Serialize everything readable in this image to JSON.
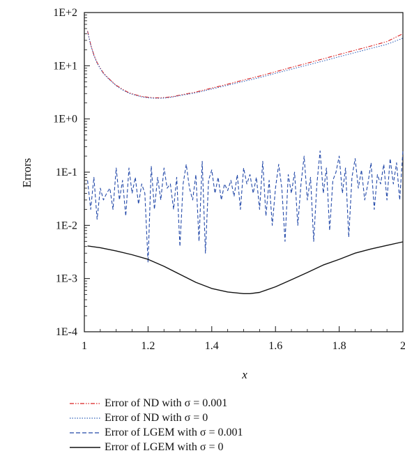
{
  "chart_data": {
    "type": "line",
    "xlabel": "x",
    "ylabel": "Errors",
    "xlim": [
      1,
      2
    ],
    "ylim": [
      0.0001,
      100
    ],
    "yscale": "log",
    "x_ticks": [
      "1",
      "1.2",
      "1.4",
      "1.6",
      "1.8",
      "2"
    ],
    "y_ticks": [
      "1E-4",
      "1E-3",
      "1E-2",
      "1E-1",
      "1E+0",
      "1E+1",
      "1E+2"
    ],
    "grid": false,
    "legend_position": "below plot",
    "series": [
      {
        "name": "Error of ND with σ = 0.001",
        "color": "#d92020",
        "style": "dash-dot-dot",
        "x": [
          1.01,
          1.02,
          1.03,
          1.04,
          1.05,
          1.06,
          1.08,
          1.1,
          1.12,
          1.14,
          1.16,
          1.18,
          1.2,
          1.22,
          1.24,
          1.26,
          1.28,
          1.3,
          1.35,
          1.4,
          1.45,
          1.5,
          1.55,
          1.6,
          1.65,
          1.7,
          1.75,
          1.8,
          1.85,
          1.9,
          1.95,
          2.0
        ],
        "y": [
          45,
          25,
          16,
          11.5,
          9,
          7.3,
          5.5,
          4.3,
          3.6,
          3.1,
          2.85,
          2.65,
          2.55,
          2.5,
          2.5,
          2.55,
          2.65,
          2.8,
          3.2,
          3.8,
          4.5,
          5.4,
          6.4,
          7.7,
          9.3,
          11.2,
          13.5,
          16.3,
          19.6,
          23.5,
          28.5,
          40
        ]
      },
      {
        "name": "Error of ND with σ = 0",
        "color": "#2f5fb8",
        "style": "dotted",
        "x": [
          1.01,
          1.02,
          1.03,
          1.04,
          1.05,
          1.06,
          1.08,
          1.1,
          1.12,
          1.14,
          1.16,
          1.18,
          1.2,
          1.22,
          1.24,
          1.26,
          1.28,
          1.3,
          1.35,
          1.4,
          1.45,
          1.5,
          1.55,
          1.6,
          1.65,
          1.7,
          1.75,
          1.8,
          1.85,
          1.9,
          1.95,
          2.0
        ],
        "y": [
          44,
          24.5,
          15.6,
          11.2,
          8.8,
          7.1,
          5.4,
          4.2,
          3.5,
          3.05,
          2.8,
          2.6,
          2.5,
          2.45,
          2.45,
          2.5,
          2.6,
          2.75,
          3.1,
          3.65,
          4.3,
          5.1,
          6.0,
          7.2,
          8.6,
          10.3,
          12.3,
          14.8,
          17.7,
          21.2,
          25.3,
          33
        ]
      },
      {
        "name": "Error of LGEM with σ = 0.001",
        "color": "#2248a8",
        "style": "dashed",
        "x": [
          1.01,
          1.02,
          1.03,
          1.04,
          1.05,
          1.06,
          1.07,
          1.08,
          1.09,
          1.1,
          1.11,
          1.12,
          1.13,
          1.14,
          1.15,
          1.16,
          1.17,
          1.18,
          1.19,
          1.2,
          1.21,
          1.22,
          1.23,
          1.24,
          1.25,
          1.26,
          1.27,
          1.28,
          1.29,
          1.3,
          1.31,
          1.32,
          1.33,
          1.34,
          1.35,
          1.36,
          1.37,
          1.38,
          1.39,
          1.4,
          1.41,
          1.42,
          1.43,
          1.44,
          1.45,
          1.46,
          1.47,
          1.48,
          1.49,
          1.5,
          1.51,
          1.52,
          1.53,
          1.54,
          1.55,
          1.56,
          1.57,
          1.58,
          1.59,
          1.6,
          1.61,
          1.62,
          1.63,
          1.64,
          1.65,
          1.66,
          1.67,
          1.68,
          1.69,
          1.7,
          1.71,
          1.72,
          1.73,
          1.74,
          1.75,
          1.76,
          1.77,
          1.78,
          1.79,
          1.8,
          1.81,
          1.82,
          1.83,
          1.84,
          1.85,
          1.86,
          1.87,
          1.88,
          1.89,
          1.9,
          1.91,
          1.92,
          1.93,
          1.94,
          1.95,
          1.96,
          1.97,
          1.98,
          1.99,
          2.0
        ],
        "y": [
          0.07,
          0.02,
          0.08,
          0.013,
          0.05,
          0.03,
          0.04,
          0.05,
          0.02,
          0.12,
          0.03,
          0.07,
          0.015,
          0.12,
          0.04,
          0.08,
          0.025,
          0.06,
          0.04,
          0.002,
          0.13,
          0.02,
          0.08,
          0.03,
          0.12,
          0.05,
          0.06,
          0.02,
          0.08,
          0.004,
          0.06,
          0.14,
          0.05,
          0.03,
          0.09,
          0.005,
          0.16,
          0.003,
          0.07,
          0.11,
          0.04,
          0.08,
          0.03,
          0.06,
          0.045,
          0.07,
          0.035,
          0.09,
          0.02,
          0.12,
          0.06,
          0.09,
          0.04,
          0.08,
          0.02,
          0.16,
          0.015,
          0.07,
          0.01,
          0.05,
          0.14,
          0.05,
          0.005,
          0.09,
          0.04,
          0.1,
          0.01,
          0.06,
          0.2,
          0.03,
          0.08,
          0.005,
          0.06,
          0.25,
          0.04,
          0.12,
          0.008,
          0.07,
          0.1,
          0.2,
          0.04,
          0.12,
          0.006,
          0.08,
          0.18,
          0.05,
          0.11,
          0.03,
          0.06,
          0.15,
          0.02,
          0.09,
          0.06,
          0.14,
          0.03,
          0.18,
          0.06,
          0.15,
          0.03,
          0.25
        ]
      },
      {
        "name": "Error of LGEM with σ = 0",
        "color": "#111111",
        "style": "solid",
        "x": [
          1.01,
          1.05,
          1.1,
          1.15,
          1.2,
          1.25,
          1.3,
          1.35,
          1.4,
          1.45,
          1.5,
          1.52,
          1.55,
          1.6,
          1.65,
          1.7,
          1.75,
          1.8,
          1.85,
          1.9,
          1.95,
          2.0
        ],
        "y": [
          0.0041,
          0.0038,
          0.0033,
          0.0028,
          0.0023,
          0.0017,
          0.0012,
          0.00085,
          0.00065,
          0.00056,
          0.00052,
          0.00052,
          0.00055,
          0.0007,
          0.00095,
          0.0013,
          0.0018,
          0.0023,
          0.003,
          0.0036,
          0.0042,
          0.0049
        ]
      }
    ]
  }
}
